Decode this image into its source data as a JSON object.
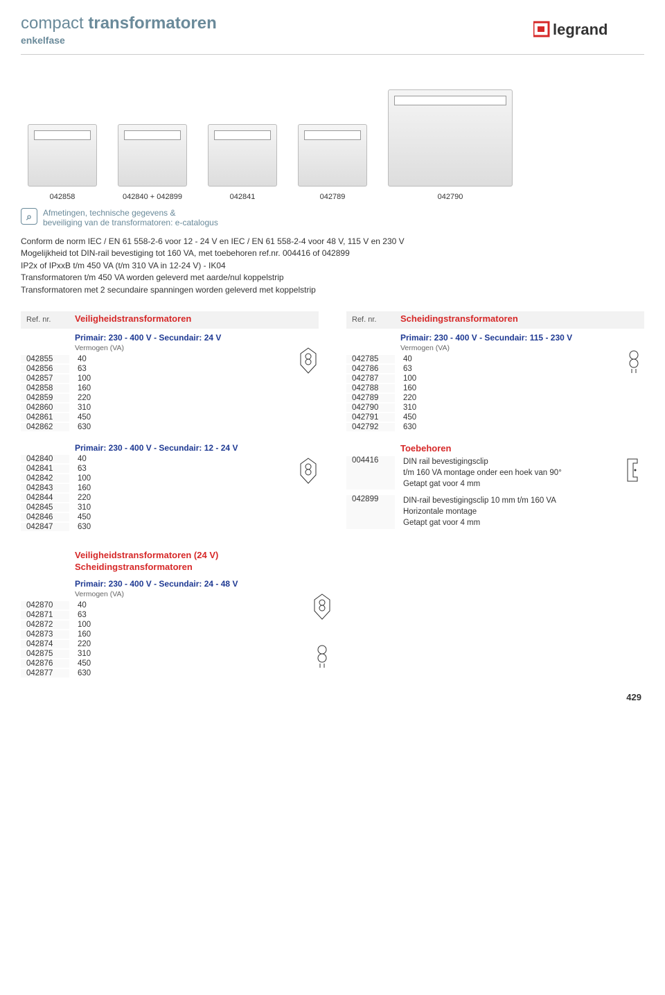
{
  "brand": "legrand",
  "title": {
    "word1": "compact",
    "word2": "transformatoren",
    "subtitle": "enkelfase"
  },
  "products": [
    {
      "label": "042858"
    },
    {
      "label": "042840 + 042899"
    },
    {
      "label": "042841"
    },
    {
      "label": "042789"
    },
    {
      "label": "042790"
    }
  ],
  "info_text_l1": "Afmetingen, technische gegevens &",
  "info_text_l2": "beveiliging van de transformatoren: e-catalogus",
  "desc_l1": "Conform de norm IEC / EN 61 558-2-6 voor 12 - 24 V en IEC / EN 61 558-2-4 voor 48 V, 115 V en 230 V",
  "desc_l2": "Mogelijkheid tot DIN-rail bevestiging tot 160 VA, met toebehoren ref.nr. 004416 of 042899",
  "desc_l3": "IP2x of IPxxB t/m 450 VA (t/m 310 VA in 12-24 V) - IK04",
  "desc_l4": "Transformatoren t/m 450 VA worden geleverd met aarde/nul koppelstrip",
  "desc_l5": "Transformatoren met 2 secundaire spanningen worden geleverd met koppelstrip",
  "ref_nr_label": "Ref. nr.",
  "left": {
    "title": "Veiligheidstransformatoren",
    "g1_title": "Primair: 230 - 400 V - Secundair: 24 V",
    "va_label": "Vermogen (VA)",
    "g1_rows": [
      {
        "ref": "042855",
        "va": "40"
      },
      {
        "ref": "042856",
        "va": "63"
      },
      {
        "ref": "042857",
        "va": "100"
      },
      {
        "ref": "042858",
        "va": "160"
      },
      {
        "ref": "042859",
        "va": "220"
      },
      {
        "ref": "042860",
        "va": "310"
      },
      {
        "ref": "042861",
        "va": "450"
      },
      {
        "ref": "042862",
        "va": "630"
      }
    ],
    "g2_title": "Primair: 230 - 400 V - Secundair: 12 - 24 V",
    "g2_rows": [
      {
        "ref": "042840",
        "va": "40"
      },
      {
        "ref": "042841",
        "va": "63"
      },
      {
        "ref": "042842",
        "va": "100"
      },
      {
        "ref": "042843",
        "va": "160"
      },
      {
        "ref": "042844",
        "va": "220"
      },
      {
        "ref": "042845",
        "va": "310"
      },
      {
        "ref": "042846",
        "va": "450"
      },
      {
        "ref": "042847",
        "va": "630"
      }
    ]
  },
  "right": {
    "title": "Scheidingstransformatoren",
    "g1_title": "Primair: 230 - 400 V - Secundair: 115 - 230 V",
    "va_label": "Vermogen (VA)",
    "g1_rows": [
      {
        "ref": "042785",
        "va": "40"
      },
      {
        "ref": "042786",
        "va": "63"
      },
      {
        "ref": "042787",
        "va": "100"
      },
      {
        "ref": "042788",
        "va": "160"
      },
      {
        "ref": "042789",
        "va": "220"
      },
      {
        "ref": "042790",
        "va": "310"
      },
      {
        "ref": "042791",
        "va": "450"
      },
      {
        "ref": "042792",
        "va": "630"
      }
    ],
    "toe_title": "Toebehoren",
    "toe": [
      {
        "ref": "004416",
        "l1": "DIN rail bevestigingsclip",
        "l2": "t/m 160 VA montage onder een hoek van 90°",
        "l3": "Getapt gat voor 4 mm"
      },
      {
        "ref": "042899",
        "l1": "DIN-rail bevestigingsclip 10 mm t/m 160 VA",
        "l2": "Horizontale montage",
        "l3": "Getapt gat voor 4 mm"
      }
    ]
  },
  "bottom": {
    "title1": "Veiligheidstransformatoren (24 V)",
    "title2": "Scheidingstransformatoren",
    "g_title": "Primair: 230 - 400 V - Secundair: 24 - 48 V",
    "va_label": "Vermogen (VA)",
    "rows": [
      {
        "ref": "042870",
        "va": "40"
      },
      {
        "ref": "042871",
        "va": "63"
      },
      {
        "ref": "042872",
        "va": "100"
      },
      {
        "ref": "042873",
        "va": "160"
      },
      {
        "ref": "042874",
        "va": "220"
      },
      {
        "ref": "042875",
        "va": "310"
      },
      {
        "ref": "042876",
        "va": "450"
      },
      {
        "ref": "042877",
        "va": "630"
      }
    ]
  },
  "page_num": "429",
  "colors": {
    "teal": "#6a8a9a",
    "red": "#d62828",
    "blue": "#1f3a93",
    "grey_bg": "#f2f2f2"
  }
}
